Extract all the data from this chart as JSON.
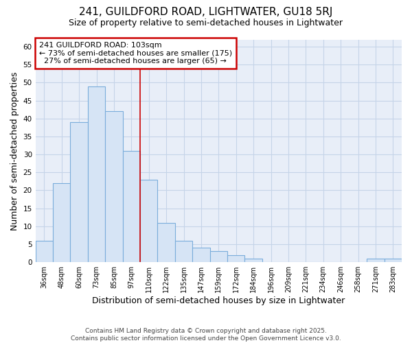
{
  "title1": "241, GUILDFORD ROAD, LIGHTWATER, GU18 5RJ",
  "title2": "Size of property relative to semi-detached houses in Lightwater",
  "xlabel": "Distribution of semi-detached houses by size in Lightwater",
  "ylabel": "Number of semi-detached properties",
  "categories": [
    "36sqm",
    "48sqm",
    "60sqm",
    "73sqm",
    "85sqm",
    "97sqm",
    "110sqm",
    "122sqm",
    "135sqm",
    "147sqm",
    "159sqm",
    "172sqm",
    "184sqm",
    "196sqm",
    "209sqm",
    "221sqm",
    "234sqm",
    "246sqm",
    "258sqm",
    "271sqm",
    "283sqm"
  ],
  "values": [
    6,
    22,
    39,
    49,
    42,
    31,
    23,
    11,
    6,
    4,
    3,
    2,
    1,
    0,
    0,
    0,
    0,
    0,
    0,
    1,
    1
  ],
  "bar_fill_color": "#d6e4f5",
  "bar_edge_color": "#7aaddb",
  "plot_bg_color": "#e8eef8",
  "fig_bg_color": "#ffffff",
  "grid_color": "#c5d4e8",
  "annotation_line_color": "#cc0000",
  "annotation_box_text": "241 GUILDFORD ROAD: 103sqm\n← 73% of semi-detached houses are smaller (175)\n  27% of semi-detached houses are larger (65) →",
  "annotation_box_facecolor": "#ffffff",
  "annotation_box_edgecolor": "#cc0000",
  "ylim": [
    0,
    62
  ],
  "yticks": [
    0,
    5,
    10,
    15,
    20,
    25,
    30,
    35,
    40,
    45,
    50,
    55,
    60
  ],
  "footnote": "Contains HM Land Registry data © Crown copyright and database right 2025.\nContains public sector information licensed under the Open Government Licence v3.0.",
  "redline_index": 5.5,
  "title1_fontsize": 11,
  "title2_fontsize": 9,
  "xlabel_fontsize": 9,
  "ylabel_fontsize": 9,
  "annotation_fontsize": 8,
  "tick_fontsize": 7,
  "footnote_fontsize": 6.5
}
